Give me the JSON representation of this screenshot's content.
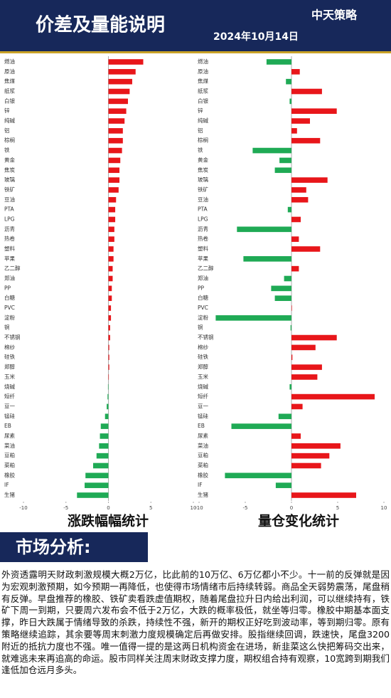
{
  "header": {
    "title": "价差及量能说明",
    "date": "2024年10月14日",
    "logo": "中天策略"
  },
  "chart_data": [
    {
      "type": "hbar",
      "title": "涨跌幅幅统计",
      "categories": [
        "燃油",
        "原油",
        "焦煤",
        "纸浆",
        "白银",
        "锌",
        "纯碱",
        "铝",
        "棕榈",
        "铁",
        "黄金",
        "焦炭",
        "玻璃",
        "铁矿",
        "豆油",
        "PTA",
        "LPG",
        "沥青",
        "热卷",
        "塑料",
        "苹果",
        "乙二醇",
        "郑油",
        "PP",
        "白糖",
        "PVC",
        "淀粉",
        "铜",
        "不锈钢",
        "棉纱",
        "硅铁",
        "郑醇",
        "玉米",
        "烧碱",
        "短纤",
        "豆一",
        "锰硅",
        "EB",
        "尿素",
        "菜油",
        "豆粕",
        "菜粕",
        "橡胶",
        "IF",
        "生猪"
      ],
      "values": [
        4.1,
        3.2,
        2.8,
        2.5,
        2.3,
        2.1,
        1.9,
        1.7,
        1.7,
        1.6,
        1.4,
        1.3,
        1.3,
        1.2,
        0.9,
        0.8,
        0.8,
        0.7,
        0.7,
        0.6,
        0.6,
        0.5,
        0.5,
        0.4,
        0.4,
        0.3,
        0.3,
        0.2,
        0.2,
        0.1,
        0.1,
        0.1,
        0.05,
        -0.05,
        -0.1,
        -0.2,
        -0.4,
        -0.9,
        -1.0,
        -1.1,
        -1.4,
        -1.8,
        -2.7,
        -2.8,
        -3.7
      ],
      "xlim": [
        -10,
        10
      ],
      "xticks": [
        -10,
        -5,
        0,
        5,
        10
      ],
      "colors": {
        "positive": "#e8161a",
        "negative": "#1faa55"
      }
    },
    {
      "type": "hbar",
      "title": "量仓变化统计",
      "categories": [
        "燃油",
        "原油",
        "焦煤",
        "纸浆",
        "白银",
        "锌",
        "纯碱",
        "铝",
        "棕榈",
        "铁",
        "黄金",
        "焦炭",
        "玻璃",
        "铁矿",
        "豆油",
        "PTA",
        "LPG",
        "沥青",
        "热卷",
        "塑料",
        "苹果",
        "乙二醇",
        "郑油",
        "PP",
        "白糖",
        "PVC",
        "淀粉",
        "铜",
        "不锈钢",
        "棉纱",
        "硅铁",
        "郑醇",
        "玉米",
        "烧碱",
        "短纤",
        "豆一",
        "锰硅",
        "EB",
        "尿素",
        "菜油",
        "豆粕",
        "菜粕",
        "橡胶",
        "IF",
        "生猪"
      ],
      "values": [
        -2.7,
        0.9,
        -0.6,
        3.3,
        -0.2,
        4.9,
        2.0,
        0.6,
        3.1,
        -4.2,
        -1.3,
        -1.8,
        3.9,
        1.6,
        1.8,
        -0.4,
        1.0,
        -5.9,
        0.8,
        3.1,
        -5.2,
        0.8,
        -0.8,
        -2.2,
        -1.8,
        0.05,
        -8.2,
        -0.1,
        4.9,
        2.6,
        0.1,
        3.3,
        2.8,
        -0.2,
        9.0,
        1.2,
        -1.4,
        -6.5,
        1.0,
        5.3,
        4.1,
        3.2,
        -7.2,
        -1.7,
        7.0
      ],
      "xlim": [
        -10,
        10
      ],
      "xticks": [
        -10,
        -5,
        0,
        5,
        10
      ],
      "colors": {
        "positive": "#e8161a",
        "negative": "#1faa55"
      }
    }
  ],
  "analysis": {
    "heading": "市场分析:",
    "text": "外资透露明天财政刺激规模大概2万亿，比此前的10万亿、6万亿都小不少。十一前的反弹就是因为宏观刺激预期，如今预期一再降低，也使得市场情绪市后持续转弱。商品全天弱势震荡，尾盘稍有反弹。早盘推荐的橡胶、铁矿卖看跌虚值期权，随着尾盘拉升日内给出利润，可以继续持有，铁矿下周一到期，只要周六发布会不低于2万亿，大跌的概率极低，就坐等归零。橡胶中期基本面支撑，昨日大跌属于情绪导致的杀跌，持续性不强，新开的期权正好吃到波动率，等到期归零。原有策略继续追踪，其余要等周末刺激力度规模确定后再做安排。股指继续回调，跌速快，尾盘3200附近的抵抗力度也不强。唯一值得一提的是这两日机构资金在进场，新韭菜这么快把筹码交出来，就难逃未来再追高的命运。股市同样关注周末财政支撑力度，期权组合持有观察，10宽跨到期我们逢低加仓远月多头。"
  }
}
